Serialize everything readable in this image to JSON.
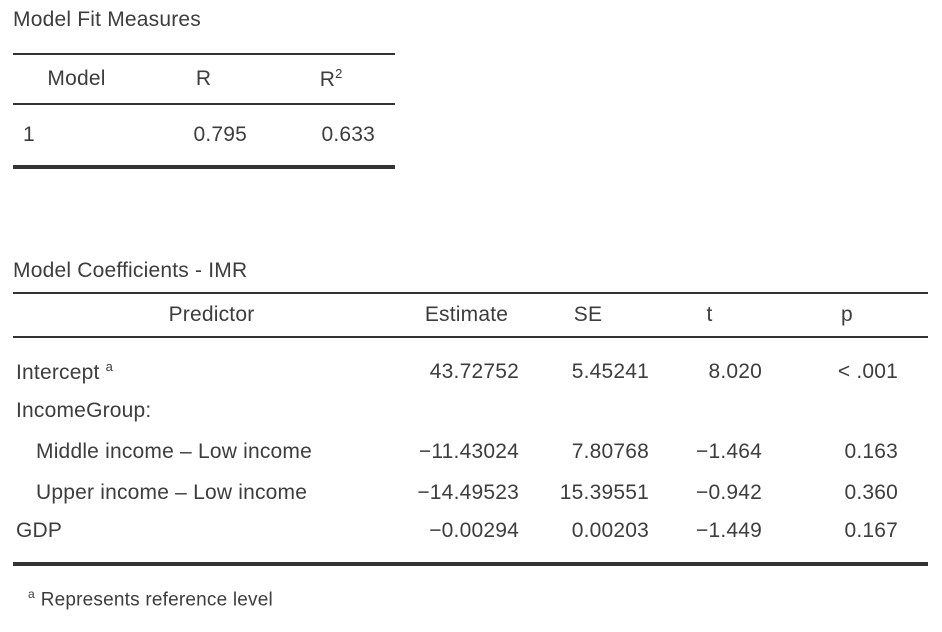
{
  "colors": {
    "text": "#3d3d3d",
    "rule_line": "#333333",
    "background": "#ffffff"
  },
  "fit_table": {
    "title": "Model Fit Measures",
    "columns": {
      "model": "Model",
      "r": "R",
      "r2_base": "R",
      "r2_sup": "2"
    },
    "row": {
      "model": "1",
      "r": "0.795",
      "r2": "0.633"
    }
  },
  "coef_table": {
    "title": "Model Coefficients - IMR",
    "columns": {
      "predictor": "Predictor",
      "estimate": "Estimate",
      "se": "SE",
      "t": "t",
      "p": "p"
    },
    "rows": [
      {
        "predictor": "Intercept",
        "sup": "a",
        "estimate": "43.72752",
        "se": "5.45241",
        "t": "8.020",
        "p": "< .001"
      },
      {
        "predictor": "IncomeGroup:",
        "estimate": "",
        "se": "",
        "t": "",
        "p": ""
      },
      {
        "predictor": "Middle income – Low income",
        "estimate": "−11.43024",
        "se": "7.80768",
        "t": "−1.464",
        "p": "0.163"
      },
      {
        "predictor": "Upper income – Low income",
        "estimate": "−14.49523",
        "se": "15.39551",
        "t": "−0.942",
        "p": "0.360"
      },
      {
        "predictor": "GDP",
        "estimate": "−0.00294",
        "se": "0.00203",
        "t": "−1.449",
        "p": "0.167"
      }
    ],
    "footnote": {
      "marker": "a",
      "text": "Represents reference level"
    }
  }
}
